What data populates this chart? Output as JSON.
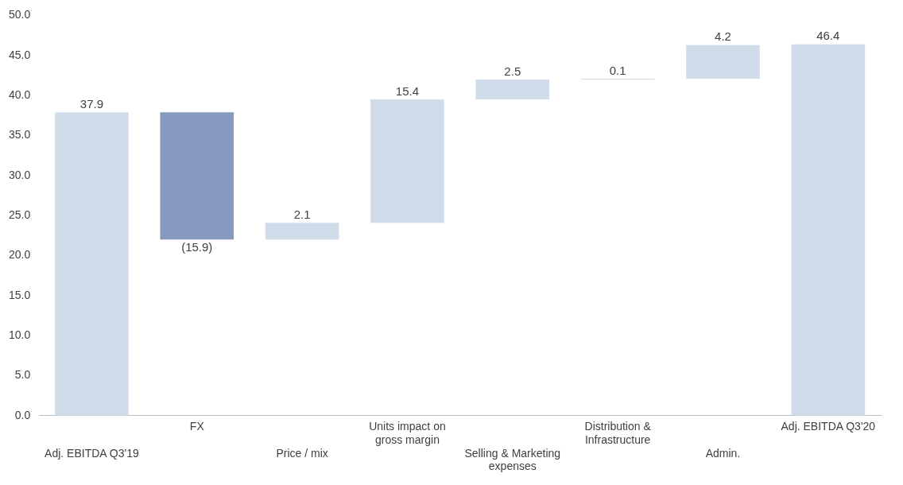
{
  "chart_data": {
    "type": "bar",
    "categories": [
      "Adj. EBITDA Q3'19",
      "FX",
      "Price / mix",
      "Units impact on gross margin",
      "Selling & Marketing expenses",
      "Distribution & Infrastructure",
      "Admin.",
      "Adj. EBITDA Q3'20"
    ],
    "values": [
      37.9,
      -15.9,
      2.1,
      15.4,
      2.5,
      0.1,
      4.2,
      46.4
    ],
    "base": [
      0,
      37.9,
      22.0,
      24.1,
      39.5,
      42.0,
      42.1,
      0
    ],
    "colors": [
      "#d0dcea",
      "#8799bf",
      "#d0dcea",
      "#d0dcea",
      "#d0dcea",
      "#d0dcea",
      "#d0dcea",
      "#d0dcea"
    ],
    "value_labels": [
      "37.9",
      "(15.9)",
      "2.1",
      "15.4",
      "2.5",
      "0.1",
      "4.2",
      "46.4"
    ],
    "ylim": [
      0,
      50
    ],
    "yticks": [
      {
        "value": 0,
        "label": "0.0"
      },
      {
        "value": 5,
        "label": "5.0"
      },
      {
        "value": 10,
        "label": "10.0"
      },
      {
        "value": 15,
        "label": "15.0"
      },
      {
        "value": 20,
        "label": "20.0"
      },
      {
        "value": 25,
        "label": "25.0"
      },
      {
        "value": 30,
        "label": "30.0"
      },
      {
        "value": 35,
        "label": "35.0"
      },
      {
        "value": 40,
        "label": "40.0"
      },
      {
        "value": 45,
        "label": "45.0"
      },
      {
        "value": 50,
        "label": "50.0"
      }
    ],
    "grid": false,
    "legend": false
  }
}
